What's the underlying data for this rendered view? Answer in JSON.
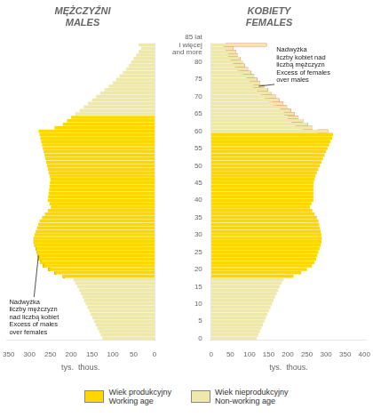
{
  "chart_data": [
    {
      "type": "bar",
      "orientation": "horizontal",
      "title": "MĘŻCZYŹNI\nMALES",
      "xlabel": "tys.  thous.",
      "categories": [
        "0",
        null,
        null,
        null,
        null,
        "5",
        null,
        null,
        null,
        null,
        "10",
        null,
        null,
        null,
        null,
        "15",
        null,
        null,
        null,
        null,
        "20",
        null,
        null,
        null,
        null,
        "25",
        null,
        null,
        null,
        null,
        "30",
        null,
        null,
        null,
        null,
        "35",
        null,
        null,
        null,
        null,
        "40",
        null,
        null,
        null,
        null,
        "45",
        null,
        null,
        null,
        null,
        "50",
        null,
        null,
        null,
        null,
        "55",
        null,
        null,
        null,
        null,
        "60",
        null,
        null,
        null,
        null,
        "65",
        null,
        null,
        null,
        null,
        "70",
        null,
        null,
        null,
        null,
        "75",
        null,
        null,
        null,
        null,
        "80",
        null,
        null,
        null,
        null,
        "85 lat\ni więcej\nand more"
      ],
      "series": [
        {
          "name": "Wiek produkcyjny\nWorking age",
          "color": "#FFD700",
          "values": [
            null,
            null,
            null,
            null,
            null,
            null,
            null,
            null,
            null,
            null,
            null,
            null,
            null,
            null,
            null,
            null,
            null,
            null,
            220,
            240,
            255,
            268,
            275,
            278,
            280,
            282,
            285,
            288,
            290,
            290,
            288,
            285,
            282,
            279,
            276,
            270,
            263,
            256,
            249,
            252,
            256,
            255,
            254,
            253,
            252,
            251,
            250,
            252,
            254,
            256,
            258,
            260,
            262,
            264,
            266,
            268,
            270,
            272,
            274,
            276,
            278,
            240,
            220,
            210,
            200,
            null,
            null,
            null,
            null,
            null,
            null,
            null,
            null,
            null,
            null,
            null,
            null,
            null,
            null,
            null,
            null,
            null,
            null,
            null,
            null,
            null
          ]
        },
        {
          "name": "Wiek nieprodukcyjny\nNon-working age",
          "color": "#EEE8AA",
          "values": [
            125,
            129,
            133,
            137,
            141,
            145,
            149,
            153,
            157,
            161,
            165,
            169,
            173,
            177,
            181,
            185,
            190,
            195,
            null,
            null,
            null,
            null,
            null,
            null,
            null,
            null,
            null,
            null,
            null,
            null,
            null,
            null,
            null,
            null,
            null,
            null,
            null,
            null,
            null,
            null,
            null,
            null,
            null,
            null,
            null,
            null,
            null,
            null,
            null,
            null,
            null,
            null,
            null,
            null,
            null,
            null,
            null,
            null,
            null,
            null,
            null,
            null,
            null,
            null,
            null,
            190,
            180,
            170,
            160,
            150,
            140,
            130,
            120,
            110,
            100,
            92,
            84,
            76,
            68,
            62,
            56,
            50,
            44,
            38,
            32,
            38
          ]
        },
        {
          "color": "#CC0000",
          "values": [
            null,
            null,
            null,
            null,
            null,
            null,
            null,
            null,
            null,
            null,
            null,
            null,
            null,
            null,
            null,
            null,
            null,
            null,
            [
              215,
              220
            ],
            [
              235,
              240
            ],
            [
              250,
              255
            ],
            [
              263,
              268
            ],
            [
              270,
              275
            ],
            [
              274,
              278
            ],
            [
              277,
              280
            ],
            [
              280,
              282
            ],
            [
              283,
              285
            ],
            [
              286,
              288
            ],
            [
              288,
              290
            ],
            [
              289,
              290
            ],
            null,
            null,
            null,
            null,
            null,
            null,
            null,
            null,
            null,
            null,
            null,
            null,
            null,
            null,
            null,
            null,
            null,
            null,
            null,
            null,
            null,
            null,
            null,
            null,
            null,
            null,
            null,
            null,
            null,
            null,
            null,
            null,
            null,
            null,
            null,
            null,
            null,
            null,
            null,
            null,
            null,
            null,
            null,
            null,
            null,
            null,
            null,
            null,
            null,
            null,
            null,
            null,
            null,
            null,
            null,
            null
          ]
        }
      ],
      "xlim": [
        355,
        0
      ],
      "xticks": [
        350,
        300,
        250,
        200,
        150,
        100,
        50,
        0
      ],
      "annotations": [
        "Nadwyżka\nliczby mężczyzn\nnad liczbą kobiet\nExcess of males\nover females"
      ],
      "grid": false,
      "tick_labels": "x",
      "legend": "bottom"
    },
    {
      "type": "bar",
      "orientation": "horizontal",
      "title": "KOBIETY\nFEMALES",
      "xlabel": "tys.  thous.",
      "categories": [
        "0",
        null,
        null,
        null,
        null,
        "5",
        null,
        null,
        null,
        null,
        "10",
        null,
        null,
        null,
        null,
        "15",
        null,
        null,
        null,
        null,
        "20",
        null,
        null,
        null,
        null,
        "25",
        null,
        null,
        null,
        null,
        "30",
        null,
        null,
        null,
        null,
        "35",
        null,
        null,
        null,
        null,
        "40",
        null,
        null,
        null,
        null,
        "45",
        null,
        null,
        null,
        null,
        "50",
        null,
        null,
        null,
        null,
        "55",
        null,
        null,
        null,
        null,
        "60",
        null,
        null,
        null,
        null,
        "65",
        null,
        null,
        null,
        null,
        "70",
        null,
        null,
        null,
        null,
        "75",
        null,
        null,
        null,
        null,
        "80",
        null,
        null,
        null,
        null,
        "85 lat\ni więcej\nand more"
      ],
      "series": [
        {
          "name": "Wiek produkcyjny\nWorking age",
          "color": "#FFD700",
          "values": [
            null,
            null,
            null,
            null,
            null,
            null,
            null,
            null,
            null,
            null,
            null,
            null,
            null,
            null,
            null,
            null,
            null,
            null,
            215,
            235,
            250,
            263,
            270,
            274,
            277,
            280,
            283,
            286,
            288,
            289,
            288,
            286,
            284,
            282,
            280,
            276,
            270,
            264,
            258,
            262,
            267,
            267,
            267,
            267,
            267,
            268,
            270,
            272,
            276,
            280,
            284,
            288,
            292,
            296,
            300,
            304,
            308,
            312,
            316,
            318,
            null,
            null,
            null,
            null,
            null,
            null,
            null,
            null,
            null,
            null,
            null,
            null,
            null,
            null,
            null,
            null,
            null,
            null,
            null,
            null,
            null,
            null,
            null,
            null,
            null,
            null
          ]
        },
        {
          "name": "Wiek nieprodukcyjny\nNon-working age",
          "color": "#EEE8AA",
          "values": [
            119,
            123,
            127,
            131,
            135,
            139,
            143,
            147,
            151,
            155,
            159,
            163,
            167,
            171,
            175,
            179,
            184,
            189,
            null,
            null,
            null,
            null,
            null,
            null,
            null,
            null,
            null,
            null,
            null,
            null,
            null,
            null,
            null,
            null,
            null,
            null,
            null,
            null,
            null,
            null,
            null,
            null,
            null,
            null,
            null,
            null,
            null,
            null,
            null,
            null,
            null,
            null,
            null,
            null,
            null,
            null,
            null,
            null,
            null,
            null,
            305,
            265,
            252,
            240,
            228,
            218,
            208,
            198,
            188,
            178,
            168,
            158,
            148,
            138,
            128,
            120,
            112,
            104,
            96,
            88,
            82,
            76,
            70,
            64,
            58,
            145
          ]
        },
        {
          "color": "#CC0000",
          "values": [
            null,
            null,
            null,
            null,
            null,
            null,
            null,
            null,
            null,
            null,
            null,
            null,
            null,
            null,
            null,
            null,
            null,
            null,
            null,
            null,
            null,
            null,
            null,
            null,
            null,
            null,
            null,
            null,
            null,
            null,
            null,
            null,
            null,
            null,
            null,
            null,
            null,
            null,
            null,
            null,
            null,
            null,
            null,
            null,
            null,
            null,
            null,
            null,
            null,
            null,
            null,
            null,
            null,
            null,
            null,
            null,
            null,
            null,
            null,
            null,
            [
              278,
              305
            ],
            [
              240,
              265
            ],
            [
              220,
              252
            ],
            [
              210,
              240
            ],
            [
              200,
              228
            ],
            [
              190,
              218
            ],
            [
              180,
              208
            ],
            [
              170,
              198
            ],
            [
              160,
              188
            ],
            [
              150,
              178
            ],
            [
              140,
              168
            ],
            [
              130,
              158
            ],
            [
              120,
              148
            ],
            [
              110,
              138
            ],
            [
              100,
              128
            ],
            [
              92,
              120
            ],
            [
              84,
              112
            ],
            [
              76,
              104
            ],
            [
              68,
              96
            ],
            [
              62,
              88
            ],
            [
              56,
              82
            ],
            [
              50,
              76
            ],
            [
              44,
              70
            ],
            [
              38,
              64
            ],
            [
              32,
              58
            ],
            [
              38,
              145
            ]
          ]
        }
      ],
      "xlim": [
        0,
        405
      ],
      "xticks": [
        0,
        50,
        100,
        150,
        200,
        250,
        300,
        350,
        400
      ],
      "annotations": [
        "Nadwyżka\nliczby kobiet nad\nliczbą mężczyzn\nExcess of females\nover males"
      ],
      "grid": false,
      "legend": "bottom"
    }
  ]
}
